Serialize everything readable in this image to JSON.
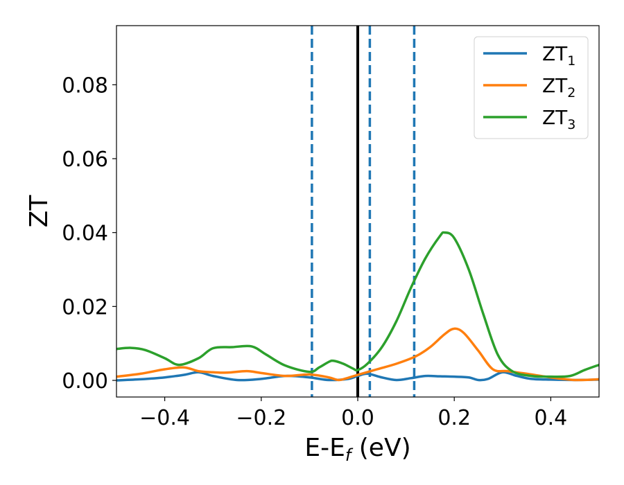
{
  "chart_data": {
    "type": "line",
    "xlabel": "E-E",
    "xlabel_sub": "f",
    "xlabel_unit": " (eV)",
    "ylabel": "ZT",
    "xlim": [
      -0.5,
      0.5
    ],
    "ylim": [
      -0.0045,
      0.096
    ],
    "x_ticks": [
      -0.4,
      -0.2,
      0.0,
      0.2,
      0.4
    ],
    "x_tick_labels": [
      "−0.4",
      "−0.2",
      "0.0",
      "0.2",
      "0.4"
    ],
    "y_ticks": [
      0.0,
      0.02,
      0.04,
      0.06,
      0.08
    ],
    "y_tick_labels": [
      "0.00",
      "0.02",
      "0.04",
      "0.06",
      "0.08"
    ],
    "grid": false,
    "legend_placement": "top-right",
    "vertical_lines": [
      {
        "x": 0.0,
        "style": "solid",
        "color": "#000000"
      },
      {
        "x": -0.095,
        "style": "dashed",
        "color": "#1f77b4"
      },
      {
        "x": 0.025,
        "style": "dashed",
        "color": "#1f77b4"
      },
      {
        "x": 0.117,
        "style": "dashed",
        "color": "#1f77b4"
      }
    ],
    "series": [
      {
        "name": "ZT",
        "name_sub": "1",
        "color": "#1f77b4",
        "x": [
          -0.5,
          -0.45,
          -0.4,
          -0.36,
          -0.33,
          -0.3,
          -0.25,
          -0.2,
          -0.15,
          -0.1,
          -0.06,
          -0.02,
          0.0,
          0.02,
          0.05,
          0.08,
          0.11,
          0.14,
          0.17,
          0.2,
          0.23,
          0.25,
          0.27,
          0.3,
          0.33,
          0.36,
          0.4,
          0.45,
          0.5
        ],
        "y": [
          0.0,
          0.0003,
          0.0008,
          0.0015,
          0.0022,
          0.0012,
          0.0001,
          0.0004,
          0.0012,
          0.0008,
          0.0001,
          0.0004,
          0.0012,
          0.0018,
          0.0008,
          0.0001,
          0.0006,
          0.0012,
          0.0011,
          0.001,
          0.0008,
          0.0001,
          0.0004,
          0.0022,
          0.0012,
          0.0004,
          0.0002,
          0.0001,
          0.0002
        ]
      },
      {
        "name": "ZT",
        "name_sub": "2",
        "color": "#ff7f0e",
        "x": [
          -0.5,
          -0.45,
          -0.4,
          -0.36,
          -0.33,
          -0.3,
          -0.27,
          -0.23,
          -0.2,
          -0.15,
          -0.1,
          -0.06,
          -0.04,
          -0.02,
          0.0,
          0.04,
          0.08,
          0.12,
          0.15,
          0.18,
          0.2,
          0.22,
          0.25,
          0.28,
          0.31,
          0.35,
          0.4,
          0.45,
          0.5
        ],
        "y": [
          0.001,
          0.0018,
          0.003,
          0.0035,
          0.0025,
          0.0022,
          0.0021,
          0.0025,
          0.002,
          0.0012,
          0.0016,
          0.0008,
          0.0001,
          0.0007,
          0.0015,
          0.003,
          0.0045,
          0.0065,
          0.009,
          0.0125,
          0.014,
          0.0128,
          0.008,
          0.003,
          0.0025,
          0.0018,
          0.0008,
          0.0001,
          0.0003
        ]
      },
      {
        "name": "ZT",
        "name_sub": "3",
        "color": "#2ca02c",
        "x": [
          -0.5,
          -0.47,
          -0.44,
          -0.4,
          -0.37,
          -0.33,
          -0.3,
          -0.26,
          -0.22,
          -0.19,
          -0.15,
          -0.1,
          -0.08,
          -0.06,
          -0.05,
          -0.03,
          -0.01,
          0.0,
          0.02,
          0.05,
          0.08,
          0.11,
          0.14,
          0.17,
          0.18,
          0.2,
          0.23,
          0.26,
          0.29,
          0.32,
          0.36,
          0.4,
          0.44,
          0.47,
          0.5
        ],
        "y": [
          0.0085,
          0.0088,
          0.0082,
          0.006,
          0.0042,
          0.006,
          0.0087,
          0.009,
          0.0092,
          0.007,
          0.004,
          0.0023,
          0.0035,
          0.005,
          0.0053,
          0.0045,
          0.0032,
          0.0028,
          0.0045,
          0.009,
          0.016,
          0.025,
          0.033,
          0.039,
          0.04,
          0.0385,
          0.03,
          0.018,
          0.007,
          0.0025,
          0.0012,
          0.001,
          0.0012,
          0.0028,
          0.0042
        ]
      }
    ]
  }
}
